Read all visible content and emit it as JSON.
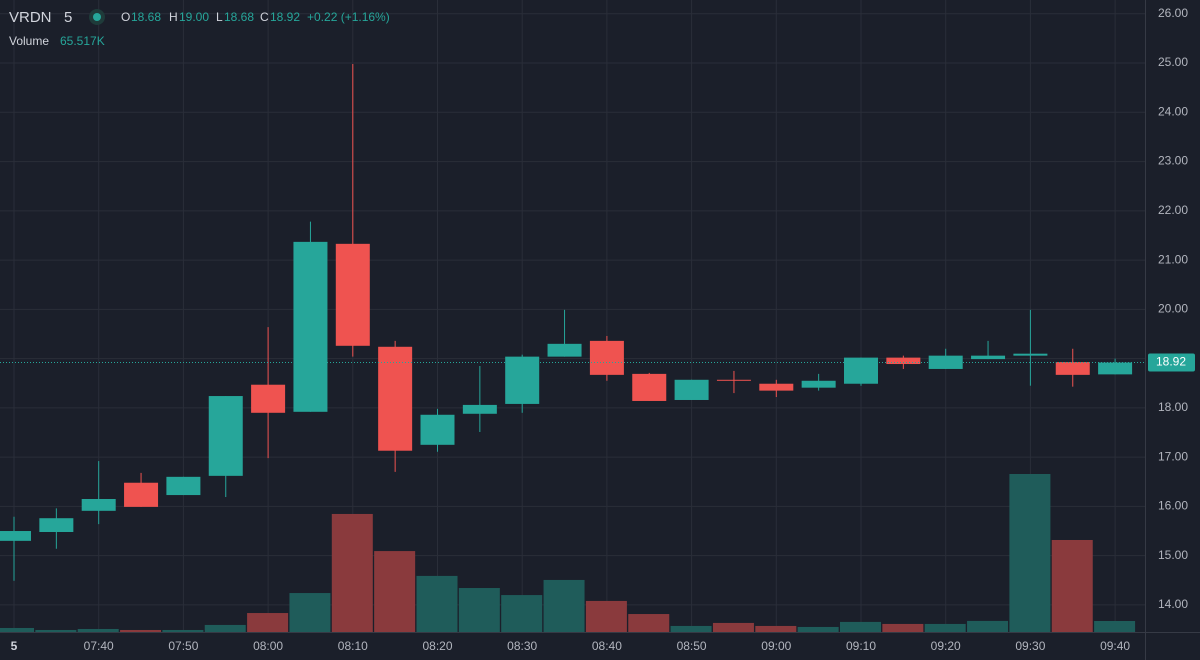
{
  "header": {
    "symbol": "VRDN",
    "interval": "5",
    "open_label": "O",
    "open": "18.68",
    "high_label": "H",
    "high": "19.00",
    "low_label": "L",
    "low": "18.68",
    "close_label": "C",
    "close": "18.92",
    "change": "+0.22 (+1.16%)",
    "volume_label": "Volume",
    "volume": "65.517K"
  },
  "chart_data": {
    "type": "candlestick",
    "categories": [
      "5",
      null,
      "07:40",
      null,
      "07:50",
      null,
      "08:00",
      null,
      "08:10",
      null,
      "08:20",
      null,
      "08:30",
      null,
      "08:40",
      null,
      "08:50",
      null,
      "09:00",
      null,
      "09:10",
      null,
      "09:20",
      null,
      "09:30",
      null,
      "09:40"
    ],
    "open": [
      15.3,
      15.48,
      15.91,
      16.48,
      16.23,
      16.62,
      18.47,
      17.92,
      21.33,
      19.24,
      17.25,
      17.88,
      18.08,
      19.04,
      19.36,
      18.69,
      18.16,
      18.57,
      18.49,
      18.41,
      18.49,
      19.02,
      18.79,
      18.99,
      19.06,
      18.93,
      18.68
    ],
    "high": [
      15.79,
      15.96,
      16.92,
      16.68,
      16.6,
      18.24,
      19.64,
      21.78,
      24.98,
      19.36,
      17.98,
      18.85,
      19.08,
      19.99,
      19.46,
      18.71,
      18.57,
      18.75,
      18.57,
      18.69,
      19.02,
      19.06,
      19.2,
      19.36,
      19.99,
      19.2,
      19.0
    ],
    "low": [
      14.49,
      15.14,
      15.64,
      15.99,
      16.23,
      16.19,
      16.98,
      17.92,
      19.04,
      16.7,
      17.11,
      17.51,
      17.9,
      19.04,
      18.55,
      18.14,
      18.16,
      18.3,
      18.22,
      18.35,
      18.45,
      18.79,
      18.79,
      18.99,
      18.45,
      18.43,
      18.68
    ],
    "close": [
      15.5,
      15.76,
      16.15,
      15.99,
      16.6,
      18.24,
      17.9,
      21.37,
      19.26,
      17.13,
      17.86,
      18.06,
      19.04,
      19.3,
      18.67,
      18.14,
      18.57,
      18.55,
      18.35,
      18.55,
      19.02,
      18.89,
      19.06,
      19.06,
      19.1,
      18.67,
      18.92
    ],
    "volume": [
      24000,
      12000,
      18000,
      12000,
      12000,
      42000,
      113000,
      232000,
      703000,
      482000,
      334000,
      262000,
      220000,
      310000,
      185000,
      107000,
      36000,
      54000,
      36000,
      30000,
      60000,
      48000,
      48000,
      66000,
      941000,
      548000,
      65517
    ],
    "ylim": [
      13.45,
      26.28
    ],
    "yticks": [
      {
        "value": 14,
        "label": "14.00"
      },
      {
        "value": 15,
        "label": "15.00"
      },
      {
        "value": 16,
        "label": "16.00"
      },
      {
        "value": 17,
        "label": "17.00"
      },
      {
        "value": 18,
        "label": "18.00"
      },
      {
        "value": 19,
        "label": "19.00"
      },
      {
        "value": 20,
        "label": "20.00"
      },
      {
        "value": 21,
        "label": "21.00"
      },
      {
        "value": 22,
        "label": "22.00"
      },
      {
        "value": 23,
        "label": "23.00"
      },
      {
        "value": 24,
        "label": "24.00"
      },
      {
        "value": 25,
        "label": "25.00"
      },
      {
        "value": 26,
        "label": "26.00"
      }
    ],
    "last_price_label": "18.92",
    "grid": true,
    "up_color": "#26a69a",
    "down_color": "#ef5350",
    "up_volume_color": "#1f5c5a",
    "down_volume_color": "#8a3a3d"
  }
}
